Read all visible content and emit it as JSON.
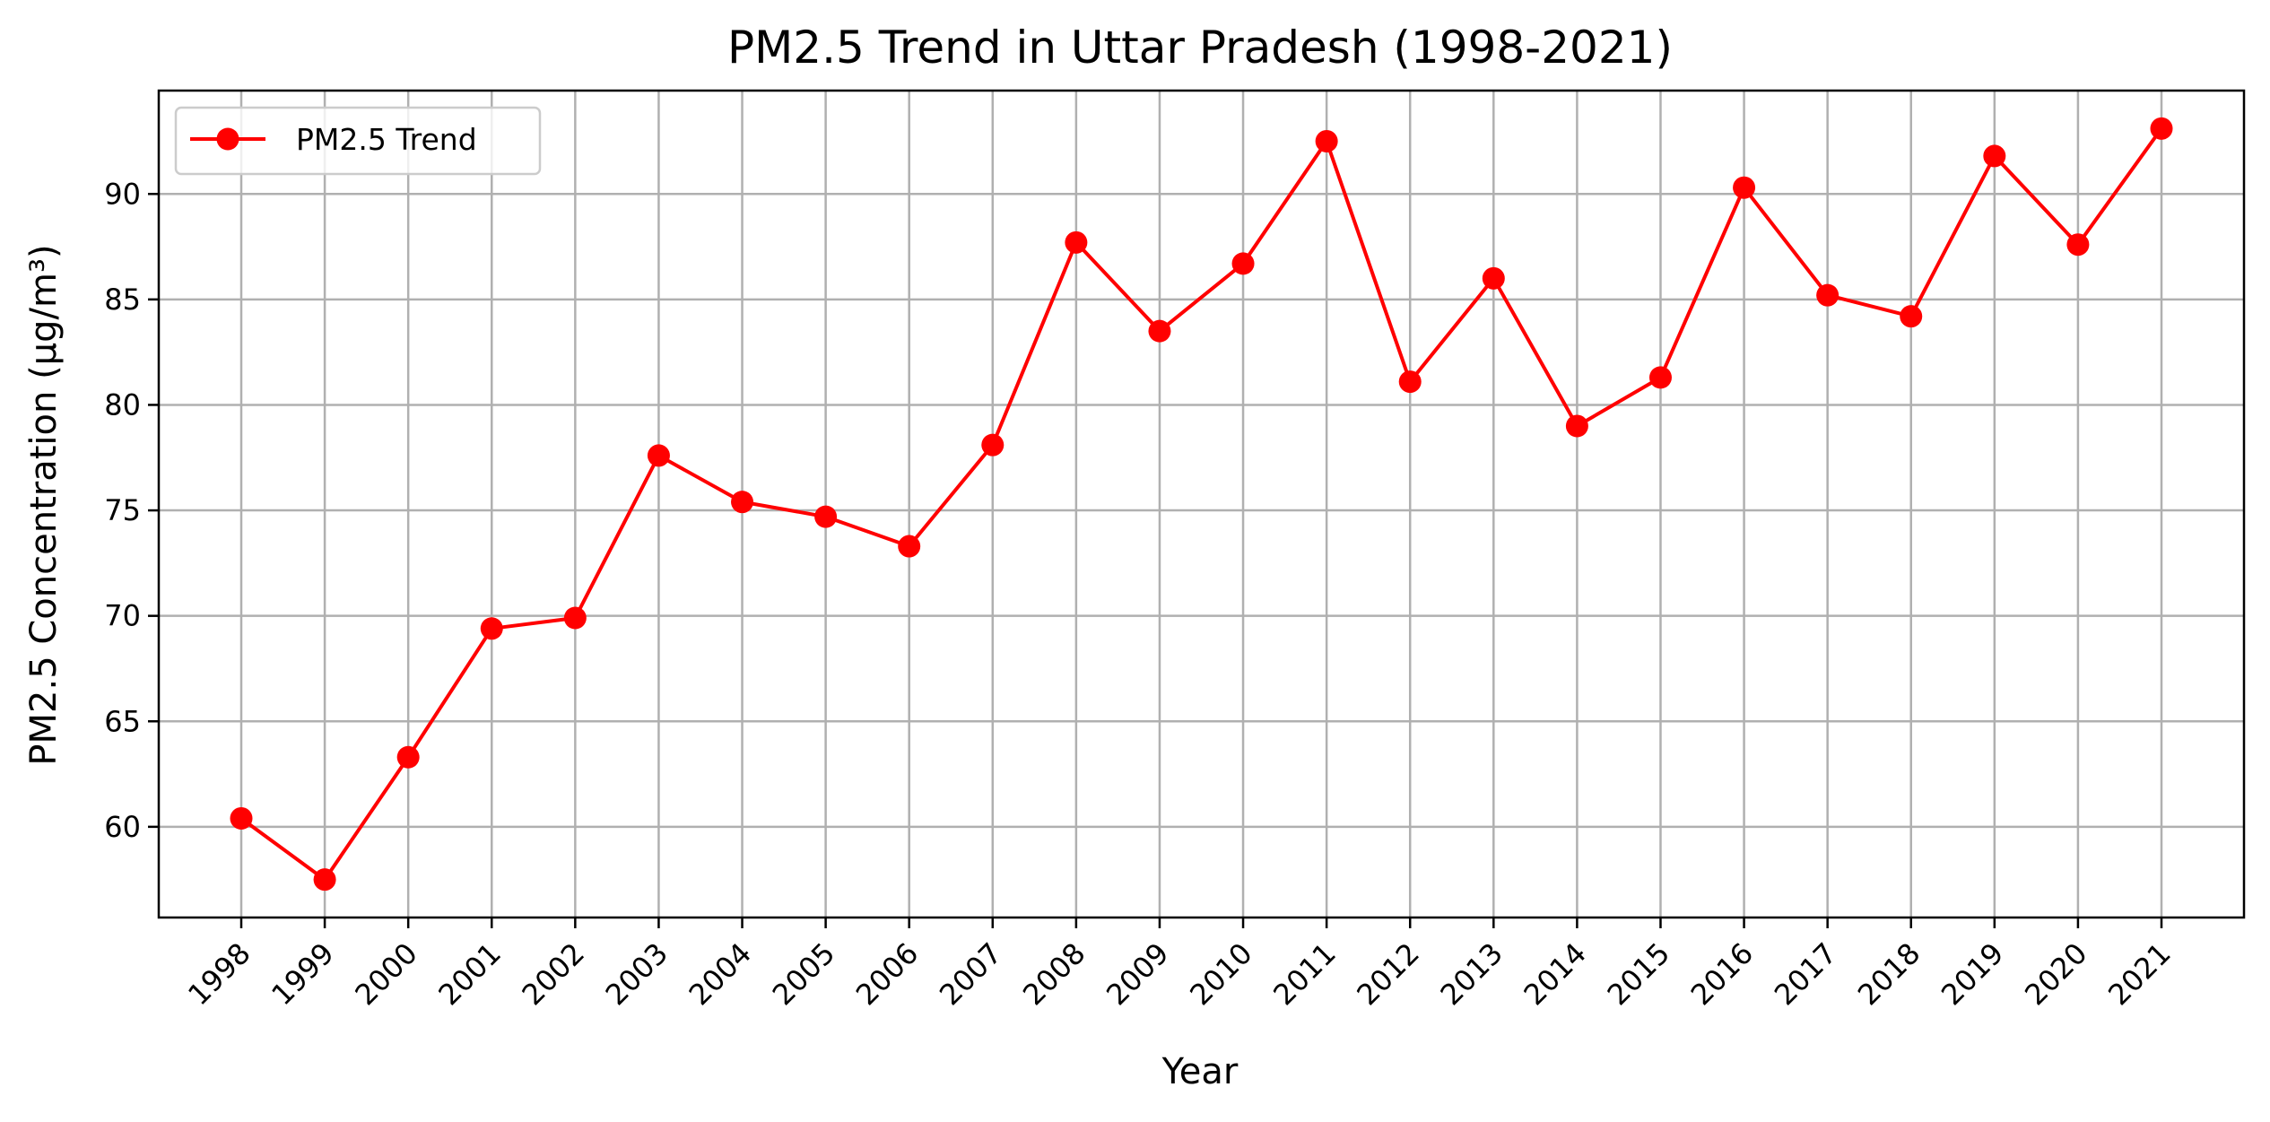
{
  "chart_data": {
    "type": "line",
    "title": "PM2.5 Trend in Uttar Pradesh (1998-2021)",
    "xlabel": "Year",
    "ylabel": "PM2.5 Concentration (µg/m³)",
    "x": [
      "1998",
      "1999",
      "2000",
      "2001",
      "2002",
      "2003",
      "2004",
      "2005",
      "2006",
      "2007",
      "2008",
      "2009",
      "2010",
      "2011",
      "2012",
      "2013",
      "2014",
      "2015",
      "2016",
      "2017",
      "2018",
      "2019",
      "2020",
      "2021"
    ],
    "series": [
      {
        "name": "PM2.5 Trend",
        "color": "#ff0000",
        "marker": "circle",
        "values": [
          60.4,
          57.5,
          63.3,
          69.4,
          69.9,
          77.6,
          75.4,
          74.7,
          73.3,
          78.1,
          87.7,
          83.5,
          86.7,
          92.5,
          81.1,
          86.0,
          79.0,
          81.3,
          90.3,
          85.2,
          84.2,
          91.8,
          87.6,
          93.1
        ]
      }
    ],
    "yticks": [
      60,
      65,
      70,
      75,
      80,
      85,
      90
    ],
    "ylim": [
      55.7,
      94.9
    ],
    "grid": true,
    "legend_position": "top-left"
  }
}
